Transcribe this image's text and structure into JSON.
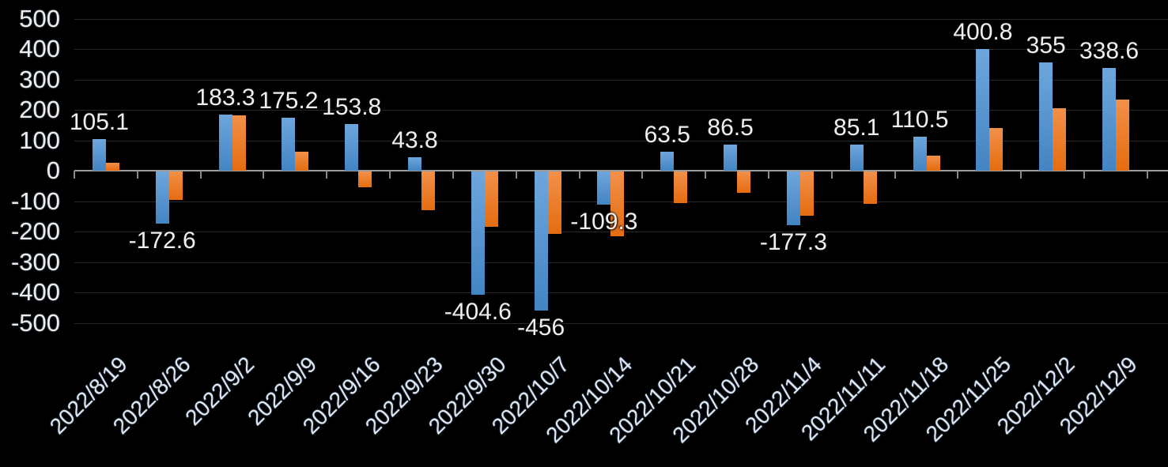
{
  "chart_data": {
    "type": "bar",
    "title": "",
    "subtitle": "",
    "legend": "none",
    "grid": true,
    "background": "#000000",
    "gridline_color": "#282828",
    "zero_axis_color": "#9b9b9b",
    "text_color": "#ededed",
    "categories": [
      "2022/8/19",
      "2022/8/26",
      "2022/9/2",
      "2022/9/9",
      "2022/9/16",
      "2022/9/23",
      "2022/9/30",
      "2022/10/7",
      "2022/10/14",
      "2022/10/21",
      "2022/10/28",
      "2022/11/4",
      "2022/11/11",
      "2022/11/18",
      "2022/11/25",
      "2022/12/2",
      "2022/12/9"
    ],
    "series": [
      {
        "name": "series-1-blue",
        "color": "#5b9bd5",
        "color_top": "#6ea6dc",
        "color_bottom": "#4384c4",
        "values": [
          105.1,
          -172.6,
          183.3,
          175.2,
          153.8,
          43.8,
          -404.6,
          -456,
          -109.3,
          63.5,
          86.5,
          -177.3,
          85.1,
          110.5,
          400.8,
          355,
          338.6
        ],
        "data_labels": [
          "105.1",
          "-172.6",
          "183.3",
          "175.2",
          "153.8",
          "43.8",
          "-404.6",
          "-456",
          "-109.3",
          "63.5",
          "86.5",
          "-177.3",
          "85.1",
          "110.5",
          "400.8",
          "355",
          "338.6"
        ]
      },
      {
        "name": "series-2-orange",
        "color": "#ed7d31",
        "color_top": "#f29049",
        "color_bottom": "#e56c0f",
        "values": [
          25,
          -93,
          183,
          62,
          -53,
          -127,
          -182,
          -204,
          -213,
          -105,
          -70,
          -145,
          -107,
          50,
          140,
          205,
          235
        ],
        "data_labels": []
      }
    ],
    "y_axis": {
      "min": -500,
      "max": 500,
      "step": 100,
      "tick_labels": [
        "500",
        "400",
        "300",
        "200",
        "100",
        "0",
        "-100",
        "-200",
        "-300",
        "-400",
        "-500"
      ]
    },
    "x_axis": {
      "label_rotation_deg": -45
    }
  }
}
